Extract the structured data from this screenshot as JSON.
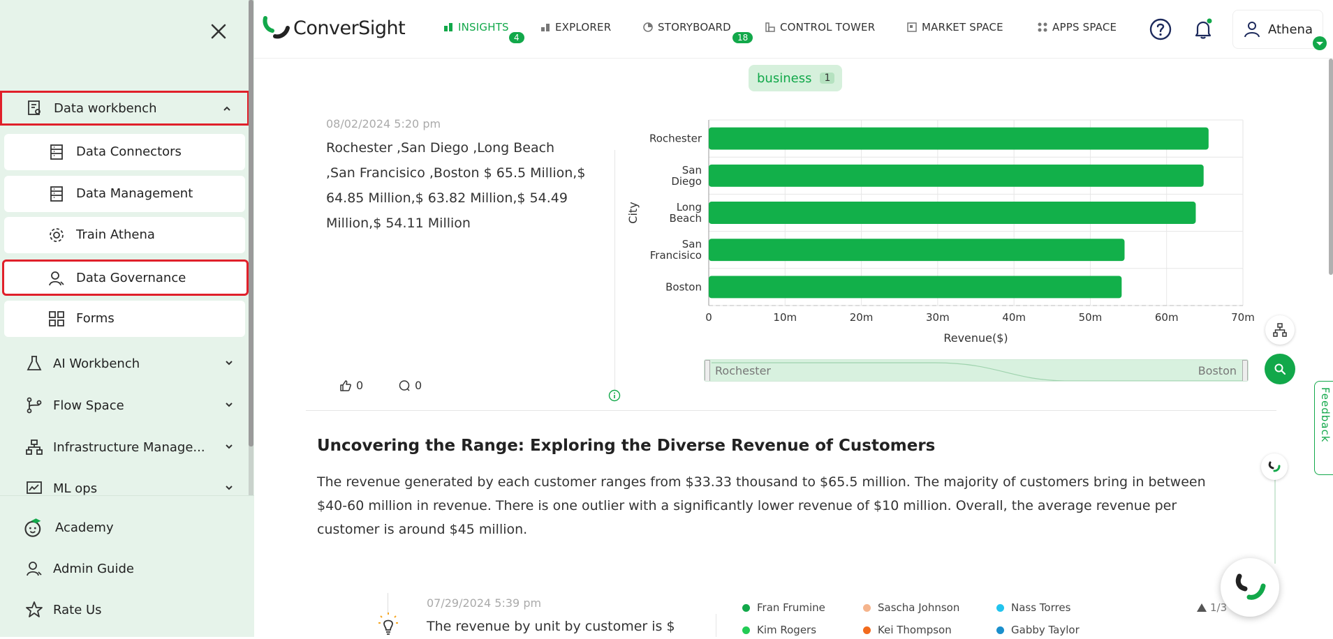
{
  "sidebar": {
    "items": [
      {
        "label": "Data workbench",
        "icon": "data-workbench-icon"
      },
      {
        "label": "AI Workbench",
        "icon": "flask-icon"
      },
      {
        "label": "Flow Space",
        "icon": "flow-icon"
      },
      {
        "label": "Infrastructure Manage...",
        "icon": "infrastructure-icon"
      },
      {
        "label": "ML ops",
        "icon": "ml-ops-icon"
      }
    ],
    "subitems": [
      {
        "label": "Data Connectors",
        "icon": "data-connectors-icon"
      },
      {
        "label": "Data Management",
        "icon": "data-management-icon"
      },
      {
        "label": "Train Athena",
        "icon": "gear-icon"
      },
      {
        "label": "Data Governance",
        "icon": "data-governance-icon"
      },
      {
        "label": "Forms",
        "icon": "forms-icon"
      }
    ],
    "bottom": [
      {
        "label": "Academy",
        "icon": "academy-icon"
      },
      {
        "label": "Admin Guide",
        "icon": "admin-guide-icon"
      },
      {
        "label": "Rate Us",
        "icon": "star-icon"
      }
    ]
  },
  "header": {
    "logo": "ConverSight",
    "nav": [
      {
        "label": "INSIGHTS",
        "badge": "4",
        "active": true
      },
      {
        "label": "EXPLORER",
        "badge": ""
      },
      {
        "label": "STORYBOARD",
        "badge": "18"
      },
      {
        "label": "CONTROL TOWER",
        "badge": ""
      },
      {
        "label": "MARKET SPACE",
        "badge": ""
      },
      {
        "label": "APPS SPACE",
        "badge": ""
      }
    ],
    "user": "Athena"
  },
  "filter_pill": {
    "label": "business",
    "count": "1"
  },
  "insight1": {
    "date": "08/02/2024 5:20 pm",
    "text_lines": [
      "Rochester ,San Diego ,Long Beach",
      ",San Francisico ,Boston $ 65.5 Million,$",
      "64.85 Million,$ 63.82 Million,$ 54.49",
      "Million,$ 54.11 Million"
    ],
    "likes": "0",
    "comments": "0"
  },
  "chart_data": {
    "type": "bar",
    "orientation": "horizontal",
    "categories": [
      "Rochester",
      "San Diego",
      "Long Beach",
      "San Francisico",
      "Boston"
    ],
    "category_labels": [
      [
        "Rochester"
      ],
      [
        "San",
        "Diego"
      ],
      [
        "Long",
        "Beach"
      ],
      [
        "San",
        "Francisico"
      ],
      [
        "Boston"
      ]
    ],
    "values": [
      65.5,
      64.85,
      63.82,
      54.49,
      54.11
    ],
    "xticks": [
      "0",
      "10m",
      "20m",
      "30m",
      "40m",
      "50m",
      "60m",
      "70m"
    ],
    "xlim": [
      0,
      70
    ],
    "xlabel": "Revenue($)",
    "ylabel": "City",
    "color": "#12b04a",
    "grid": true
  },
  "range_slider": {
    "start": "Rochester",
    "end": "Boston"
  },
  "insight2": {
    "title": "Uncovering the Range: Exploring the Diverse Revenue of Customers",
    "paragraph": "The revenue generated by each customer ranges from $33.33 thousand to $65.5 million. The majority of customers bring in between $40-60 million in revenue. There is one outlier with a significantly lower revenue of $10 million. Overall, the average revenue per customer is around $45 million."
  },
  "insight3": {
    "date": "07/29/2024 5:39 pm",
    "text": "The revenue by unit by customer is $",
    "legend": [
      {
        "name": "Fran Frumine",
        "color": "#12a84a"
      },
      {
        "name": "Sascha Johnson",
        "color": "#f5b48c"
      },
      {
        "name": "Nass Torres",
        "color": "#22c4ee"
      },
      {
        "name": "Kim Rogers",
        "color": "#22cc55"
      },
      {
        "name": "Kei Thompson",
        "color": "#f26b1d"
      },
      {
        "name": "Gabby Taylor",
        "color": "#1a8fcc"
      }
    ],
    "pager": "1/3"
  },
  "feedback_label": "Feedback",
  "colors": {
    "accent": "#12a84a",
    "sidebar_bg": "#e6f3ea",
    "highlight": "#e0202a"
  }
}
